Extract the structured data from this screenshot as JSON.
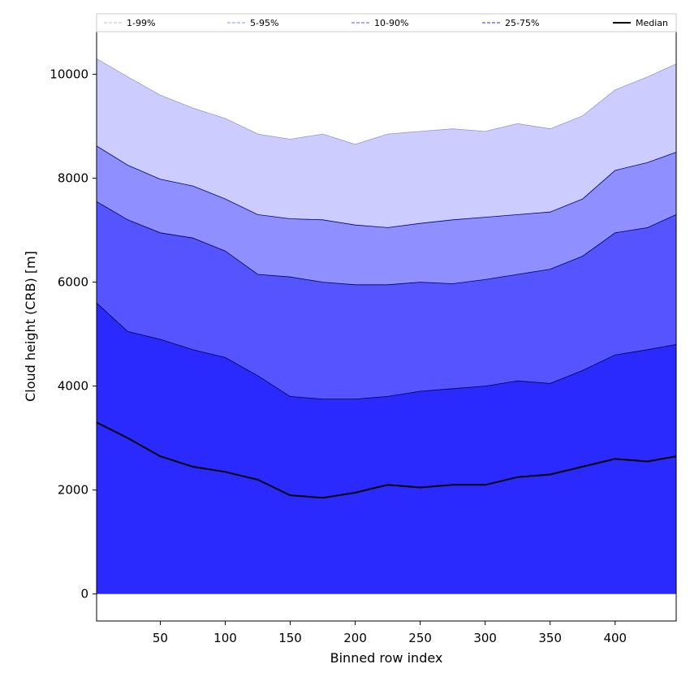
{
  "chart_data": {
    "type": "area",
    "title": "",
    "xlabel": "Binned row index",
    "ylabel": "Cloud height (CRB) [m]",
    "xlim": [
      1,
      447
    ],
    "ylim": [
      -520,
      10820
    ],
    "xticks": [
      50,
      100,
      150,
      200,
      250,
      300,
      350,
      400
    ],
    "yticks": [
      0,
      2000,
      4000,
      6000,
      8000,
      10000
    ],
    "grid": false,
    "legend_position": "top, spanning full width above plot",
    "x": [
      1,
      25,
      50,
      75,
      100,
      125,
      150,
      175,
      200,
      225,
      250,
      275,
      300,
      325,
      350,
      375,
      400,
      425,
      447
    ],
    "bands": [
      {
        "name": "1-99%",
        "color": "#ccccff",
        "edge_color": "#9999cc",
        "lower": [
          400,
          300,
          150,
          100,
          50,
          30,
          20,
          10,
          10,
          10,
          10,
          10,
          10,
          10,
          10,
          10,
          10,
          10,
          10
        ],
        "upper": [
          10300,
          9950,
          9600,
          9350,
          9150,
          8850,
          8750,
          8850,
          8650,
          8850,
          8900,
          8950,
          8900,
          9050,
          8950,
          9200,
          9700,
          9950,
          10200
        ]
      },
      {
        "name": "5-95%",
        "color": "#8f8fff",
        "edge_color": "#000080",
        "lower": [
          700,
          600,
          400,
          300,
          200,
          150,
          100,
          80,
          70,
          60,
          50,
          50,
          50,
          100,
          150,
          300,
          500,
          600,
          700
        ],
        "upper": [
          8620,
          8250,
          7980,
          7850,
          7600,
          7300,
          7220,
          7200,
          7100,
          7050,
          7130,
          7200,
          7250,
          7300,
          7350,
          7600,
          8150,
          8300,
          8500
        ]
      },
      {
        "name": "10-90%",
        "color": "#5555ff",
        "edge_color": "#000050",
        "lower": [
          1500,
          1300,
          1100,
          1000,
          900,
          850,
          750,
          700,
          800,
          850,
          800,
          800,
          850,
          900,
          950,
          1100,
          1200,
          1250,
          1300
        ],
        "upper": [
          7550,
          7200,
          6950,
          6850,
          6600,
          6150,
          6100,
          6000,
          5950,
          5950,
          6000,
          5970,
          6050,
          6150,
          6250,
          6500,
          6950,
          7050,
          7300
        ]
      },
      {
        "name": "25-75%",
        "color": "#2a2aff",
        "edge_color": "#000040",
        "lower": [
          0,
          0,
          0,
          0,
          0,
          0,
          0,
          0,
          0,
          0,
          0,
          0,
          0,
          0,
          0,
          0,
          0,
          0,
          0
        ],
        "upper": [
          5600,
          5050,
          4900,
          4700,
          4550,
          4200,
          3800,
          3750,
          3750,
          3800,
          3900,
          3950,
          4000,
          4100,
          4050,
          4300,
          4600,
          4700,
          4800
        ]
      }
    ],
    "median": {
      "name": "Median",
      "color": "#000000",
      "values": [
        3300,
        3000,
        2650,
        2450,
        2350,
        2200,
        1900,
        1850,
        1950,
        2100,
        2050,
        2100,
        2100,
        2250,
        2300,
        2450,
        2600,
        2550,
        2650
      ]
    }
  }
}
